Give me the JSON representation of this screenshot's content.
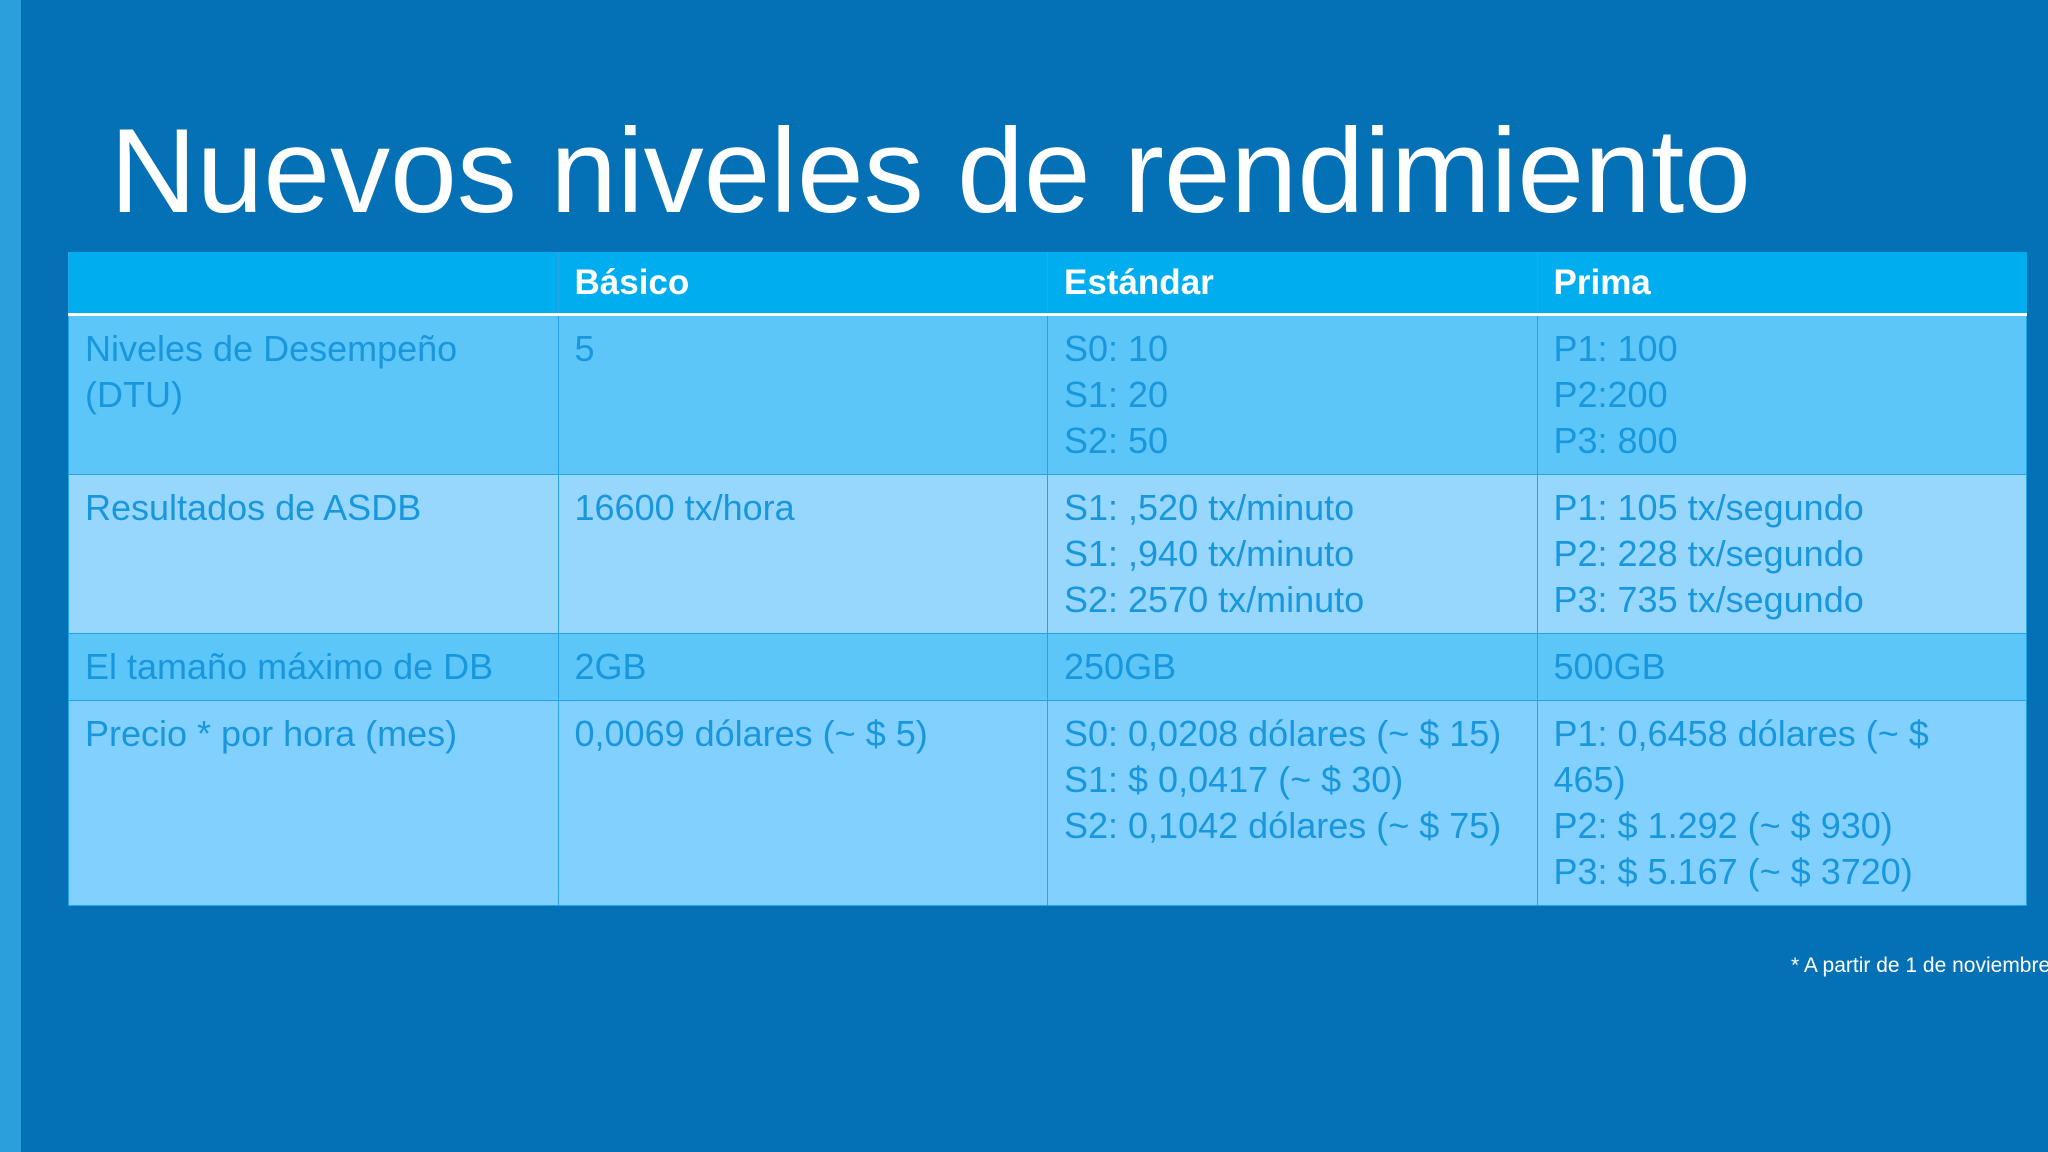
{
  "title": "Nuevos niveles de rendimiento",
  "table": {
    "headers": [
      "",
      "Básico",
      "Estándar",
      "Prima"
    ],
    "rows": [
      {
        "label": [
          "Niveles de Desempeño",
          "(DTU)"
        ],
        "basic": [
          "5"
        ],
        "standard": [
          "S0: 10",
          "S1: 20",
          "S2: 50"
        ],
        "premium": [
          "P1: 100",
          "P2:200",
          "P3: 800"
        ]
      },
      {
        "label": [
          "Resultados de ASDB"
        ],
        "basic": [
          "16600 tx/hora"
        ],
        "standard": [
          "S1: ,520 tx/minuto",
          "S1: ,940 tx/minuto",
          "S2: 2570 tx/minuto"
        ],
        "premium": [
          "P1: 105 tx/segundo",
          "P2: 228 tx/segundo",
          "P3: 735 tx/segundo"
        ]
      },
      {
        "label": [
          "El tamaño máximo de DB"
        ],
        "basic": [
          "2GB"
        ],
        "standard": [
          "250GB"
        ],
        "premium": [
          "500GB"
        ]
      },
      {
        "label": [
          "Precio * por hora (mes)"
        ],
        "basic": [
          "0,0069 dólares (~ $ 5)"
        ],
        "standard": [
          "S0: 0,0208 dólares (~ $ 15)",
          "S1: $ 0,0417 (~ $ 30)",
          "S2: 0,1042 dólares (~ $ 75)"
        ],
        "premium": [
          "P1: 0,6458 dólares (~ $ 465)",
          "P2: $ 1.292 (~ $ 930)",
          "P3: $ 5.167 (~ $ 3720)"
        ]
      }
    ]
  },
  "footnote": "* A partir de 1 de noviembre",
  "colors": {
    "background": "#0470b5",
    "left_strip": "#2a9fdb",
    "header": "#00aeef",
    "text": "#1997dd"
  }
}
